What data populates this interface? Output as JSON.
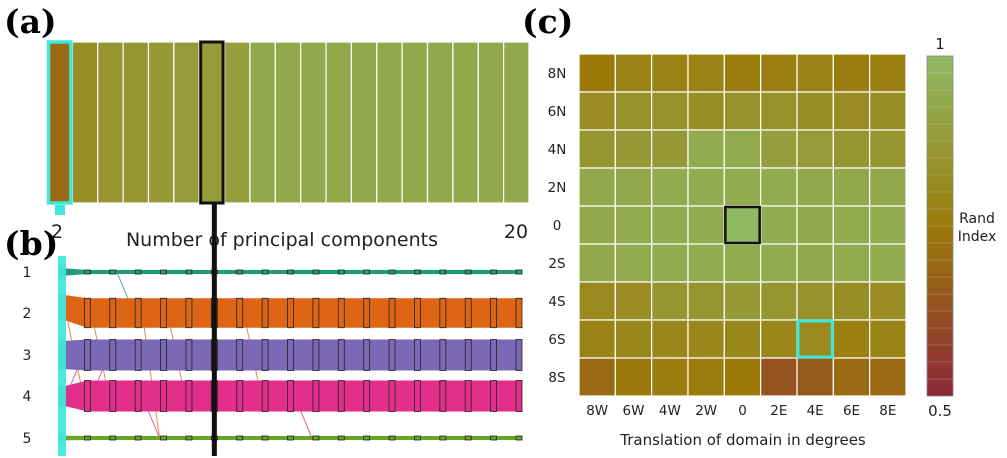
{
  "panel_labels": {
    "a": "(a)",
    "b": "(b)",
    "c": "(c)"
  },
  "chart_data": [
    {
      "type": "heatmap",
      "panel": "(a)",
      "title": "",
      "xlabel": "Number of principal components",
      "x_tick_labels": [
        "2",
        "20"
      ],
      "x": [
        2,
        3,
        4,
        5,
        6,
        7,
        8,
        9,
        10,
        11,
        12,
        13,
        14,
        15,
        16,
        17,
        18,
        19,
        20
      ],
      "values": [
        0.7,
        0.83,
        0.85,
        0.86,
        0.87,
        0.88,
        0.88,
        0.89,
        0.93,
        0.93,
        0.93,
        0.93,
        0.93,
        0.93,
        0.93,
        0.93,
        0.93,
        0.93,
        0.93
      ],
      "highlight_cyan_x": 2,
      "highlight_black_x": 8,
      "color_range": [
        0.5,
        1
      ]
    },
    {
      "type": "area",
      "subtype": "sankey",
      "panel": "(b)",
      "y_tick_labels": [
        "1",
        "2",
        "3",
        "4",
        "5"
      ],
      "x": [
        2,
        3,
        4,
        5,
        6,
        7,
        8,
        9,
        10,
        11,
        12,
        13,
        14,
        15,
        16,
        17,
        18,
        19,
        20
      ],
      "series": [
        {
          "label": "1",
          "color": "#1f9a7a",
          "values": [
            0.05,
            0.02,
            0.02,
            0.02,
            0.02,
            0.02,
            0.02,
            0.02,
            0.02,
            0.02,
            0.02,
            0.02,
            0.02,
            0.02,
            0.02,
            0.02,
            0.02,
            0.02,
            0.02
          ]
        },
        {
          "label": "2",
          "color": "#dd6515",
          "values": [
            0.16,
            0.19,
            0.19,
            0.19,
            0.19,
            0.19,
            0.19,
            0.19,
            0.19,
            0.19,
            0.19,
            0.19,
            0.19,
            0.19,
            0.19,
            0.19,
            0.19,
            0.19,
            0.19
          ]
        },
        {
          "label": "3",
          "color": "#7b68b4",
          "values": [
            0.18,
            0.2,
            0.2,
            0.2,
            0.2,
            0.2,
            0.2,
            0.2,
            0.2,
            0.2,
            0.2,
            0.2,
            0.2,
            0.2,
            0.2,
            0.2,
            0.2,
            0.2,
            0.2
          ]
        },
        {
          "label": "4",
          "color": "#e02e8a",
          "values": [
            0.12,
            0.2,
            0.2,
            0.2,
            0.2,
            0.2,
            0.2,
            0.2,
            0.2,
            0.2,
            0.2,
            0.2,
            0.2,
            0.2,
            0.2,
            0.2,
            0.2,
            0.2,
            0.2
          ]
        },
        {
          "label": "5",
          "color": "#66a624",
          "values": [
            0.03,
            0.02,
            0.02,
            0.02,
            0.02,
            0.02,
            0.02,
            0.02,
            0.02,
            0.02,
            0.02,
            0.02,
            0.02,
            0.02,
            0.02,
            0.02,
            0.02,
            0.02,
            0.02
          ]
        }
      ],
      "highlight_cyan_x": 2,
      "highlight_black_x": 8
    },
    {
      "type": "heatmap",
      "panel": "(c)",
      "title": "",
      "xlabel": "Translation of domain in degrees",
      "ylabel": "",
      "x_categories": [
        "8W",
        "6W",
        "4W",
        "2W",
        "0",
        "2E",
        "4E",
        "6E",
        "8E"
      ],
      "y_categories": [
        "8N",
        "6N",
        "4N",
        "2N",
        "0",
        "2S",
        "4S",
        "6S",
        "8S"
      ],
      "values": [
        [
          0.75,
          0.78,
          0.78,
          0.78,
          0.76,
          0.77,
          0.78,
          0.76,
          0.77
        ],
        [
          0.82,
          0.84,
          0.84,
          0.83,
          0.84,
          0.84,
          0.83,
          0.82,
          0.83
        ],
        [
          0.86,
          0.87,
          0.87,
          0.94,
          0.94,
          0.89,
          0.88,
          0.86,
          0.86
        ],
        [
          0.93,
          0.93,
          0.94,
          0.94,
          0.94,
          0.94,
          0.93,
          0.93,
          0.93
        ],
        [
          0.93,
          0.94,
          0.94,
          0.94,
          1.0,
          0.94,
          0.93,
          0.94,
          0.94
        ],
        [
          0.93,
          0.94,
          0.94,
          0.94,
          0.94,
          0.94,
          0.93,
          0.94,
          0.94
        ],
        [
          0.81,
          0.82,
          0.86,
          0.86,
          0.87,
          0.86,
          0.84,
          0.83,
          0.82
        ],
        [
          0.78,
          0.8,
          0.8,
          0.8,
          0.8,
          0.8,
          0.81,
          0.77,
          0.79
        ],
        [
          0.7,
          0.74,
          0.76,
          0.76,
          0.75,
          0.63,
          0.65,
          0.7,
          0.7
        ]
      ],
      "highlight_black": {
        "x": "0",
        "y": "0"
      },
      "highlight_cyan": {
        "x": "4E",
        "y": "6S"
      },
      "colorbar": {
        "label": [
          "Rand",
          "Index"
        ],
        "max_label": "1",
        "min_label": "0.5",
        "range": [
          0.5,
          1
        ]
      }
    }
  ]
}
